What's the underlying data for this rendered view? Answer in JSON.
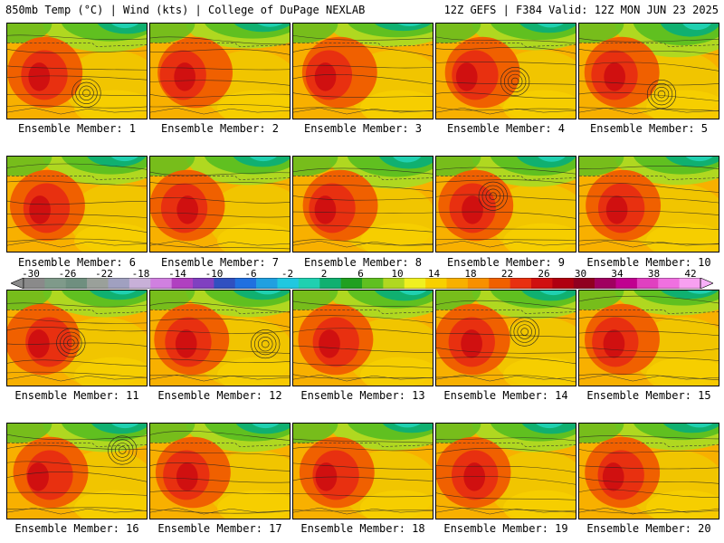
{
  "header": {
    "left": "850mb Temp (°C) | Wind (kts) | College of DuPage NEXLAB",
    "right": "12Z GEFS | F384 Valid: 12Z MON JUN 23 2025"
  },
  "colorbar": {
    "labels": [
      "-30",
      "-26",
      "-22",
      "-18",
      "-14",
      "-10",
      "-6",
      "-2",
      "2",
      "6",
      "10",
      "14",
      "18",
      "22",
      "26",
      "30",
      "34",
      "38",
      "42"
    ],
    "colors": [
      "#8a8a8a",
      "#7f9a8a",
      "#6f8f7f",
      "#9aa09a",
      "#a0a0c0",
      "#c8b0d8",
      "#d080e0",
      "#b040c0",
      "#8040c0",
      "#3050c0",
      "#2070e0",
      "#20a0e0",
      "#20c8e0",
      "#20d0b0",
      "#10b070",
      "#20a020",
      "#60c020",
      "#b0d820",
      "#f0f020",
      "#f8d000",
      "#f8b000",
      "#f89000",
      "#f06000",
      "#e83010",
      "#d01010",
      "#b00010",
      "#900020",
      "#a00060",
      "#c00090",
      "#e040c0",
      "#f070e0",
      "#f8a0f0"
    ]
  },
  "panels": [
    {
      "caption": "Ensemble Member: 1",
      "low": true,
      "cool": 0.3
    },
    {
      "caption": "Ensemble Member: 2",
      "low": false,
      "cool": 0.2
    },
    {
      "caption": "Ensemble Member: 3",
      "low": false,
      "cool": 0.15
    },
    {
      "caption": "Ensemble Member: 4",
      "low": true,
      "cool": 0.25
    },
    {
      "caption": "Ensemble Member: 5",
      "low": true,
      "cool": 0.45
    },
    {
      "caption": "Ensemble Member: 6",
      "low": false,
      "cool": 0.3
    },
    {
      "caption": "Ensemble Member: 7",
      "low": false,
      "cool": 0.3
    },
    {
      "caption": "Ensemble Member: 8",
      "low": false,
      "cool": 0.4
    },
    {
      "caption": "Ensemble Member: 9",
      "low": true,
      "cool": 0.35
    },
    {
      "caption": "Ensemble Member: 10",
      "low": false,
      "cool": 0.3
    },
    {
      "caption": "Ensemble Member: 11",
      "low": true,
      "cool": 0.25
    },
    {
      "caption": "Ensemble Member: 12",
      "low": true,
      "cool": 0.25
    },
    {
      "caption": "Ensemble Member: 13",
      "low": false,
      "cool": 0.3
    },
    {
      "caption": "Ensemble Member: 14",
      "low": true,
      "cool": 0.3
    },
    {
      "caption": "Ensemble Member: 15",
      "low": false,
      "cool": 0.2
    },
    {
      "caption": "Ensemble Member: 16",
      "low": true,
      "cool": 0.3
    },
    {
      "caption": "Ensemble Member: 17",
      "low": false,
      "cool": 0.3
    },
    {
      "caption": "Ensemble Member: 18",
      "low": false,
      "cool": 0.25
    },
    {
      "caption": "Ensemble Member: 19",
      "low": false,
      "cool": 0.3
    },
    {
      "caption": "Ensemble Member: 20",
      "low": false,
      "cool": 0.25
    }
  ]
}
